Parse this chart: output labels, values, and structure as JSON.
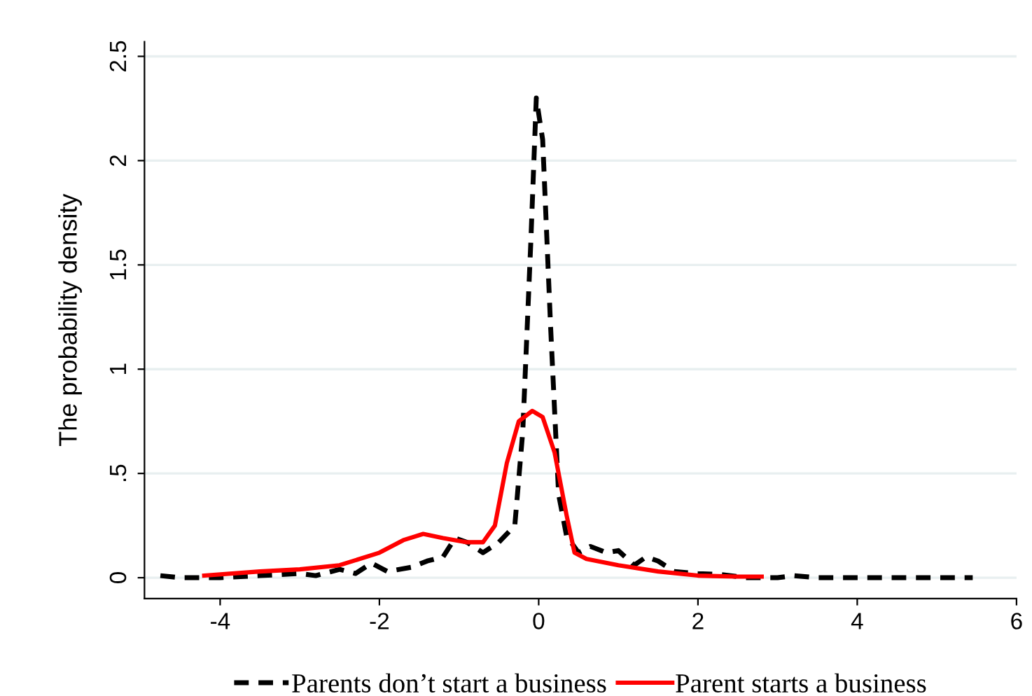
{
  "chart_data": {
    "type": "line",
    "ylabel": "The probability density",
    "xlim": [
      -4.95,
      6
    ],
    "xticks": [
      -4,
      -2,
      0,
      2,
      4,
      6
    ],
    "ylim": [
      -0.1,
      2.57
    ],
    "yticks": [
      0,
      {
        "value": 0.5,
        "label": ".5"
      },
      1,
      1.5,
      2,
      2.5
    ],
    "grid": "y",
    "legend": "bottom",
    "marker": "none",
    "series": [
      {
        "name": "Parents don’t start a business",
        "color": "#000000",
        "line_style": "dashed",
        "x": [
          -4.75,
          -4.5,
          -4,
          -3.5,
          -3,
          -2.8,
          -2.5,
          -2.3,
          -2.1,
          -1.9,
          -1.6,
          -1.4,
          -1.2,
          -1.05,
          -0.9,
          -0.7,
          -0.5,
          -0.3,
          -0.2,
          -0.1,
          -0.03,
          0.05,
          0.15,
          0.25,
          0.35,
          0.5,
          0.65,
          0.85,
          1.0,
          1.2,
          1.35,
          1.5,
          1.7,
          2.0,
          2.3,
          2.6,
          3.0,
          3.2,
          3.5,
          4,
          5,
          5.45
        ],
        "values": [
          0.01,
          0.0,
          0.0,
          0.01,
          0.02,
          0.01,
          0.04,
          0.02,
          0.07,
          0.03,
          0.05,
          0.08,
          0.1,
          0.19,
          0.17,
          0.12,
          0.17,
          0.25,
          0.7,
          1.6,
          2.3,
          2.1,
          1.2,
          0.4,
          0.2,
          0.12,
          0.15,
          0.12,
          0.13,
          0.06,
          0.1,
          0.08,
          0.03,
          0.02,
          0.015,
          0.0,
          0.0,
          0.01,
          0.0,
          0.0,
          0.0,
          0.0
        ]
      },
      {
        "name": "Parent starts a business",
        "color": "#ff0000",
        "line_style": "solid",
        "x": [
          -4.2,
          -3.5,
          -3,
          -2.5,
          -2,
          -1.7,
          -1.45,
          -1.2,
          -0.9,
          -0.7,
          -0.55,
          -0.4,
          -0.25,
          -0.08,
          0.05,
          0.2,
          0.35,
          0.45,
          0.6,
          1.0,
          1.5,
          2.0,
          2.5,
          2.8
        ],
        "values": [
          0.01,
          0.03,
          0.04,
          0.06,
          0.12,
          0.18,
          0.21,
          0.19,
          0.17,
          0.17,
          0.25,
          0.55,
          0.75,
          0.8,
          0.77,
          0.6,
          0.3,
          0.12,
          0.09,
          0.06,
          0.03,
          0.01,
          0.005,
          0.005
        ]
      }
    ]
  }
}
